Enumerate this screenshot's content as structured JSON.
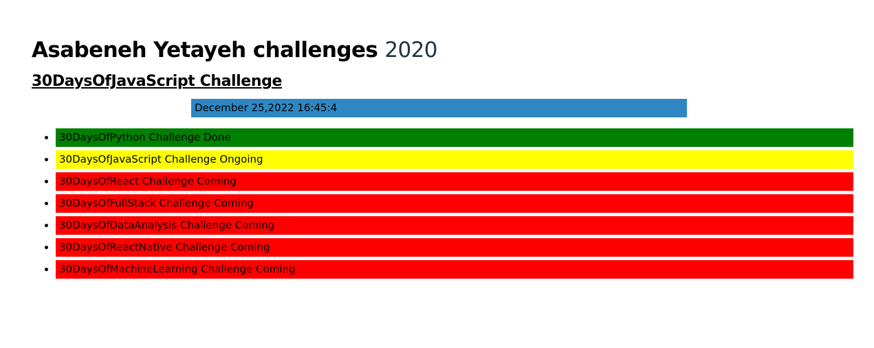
{
  "header": {
    "title": "Asabeneh Yetayeh challenges",
    "year": "2020",
    "year_color": "#1f3342"
  },
  "subtitle": "30DaysOfJavaScript Challenge",
  "date_box": {
    "text": "December 25,2022 16:45:4",
    "color": "#2e87c2"
  },
  "challenges": [
    {
      "label": "30DaysOfPython Challenge Done",
      "status": "Done",
      "color": "#008000"
    },
    {
      "label": "30DaysOfJavaScript Challenge Ongoing",
      "status": "Ongoing",
      "color": "#ffff00"
    },
    {
      "label": "30DaysOfReact Challenge Coming",
      "status": "Coming",
      "color": "#ff0000"
    },
    {
      "label": "30DaysOfFullStack Challenge Coming",
      "status": "Coming",
      "color": "#ff0000"
    },
    {
      "label": "30DaysOfDataAnalysis Challenge Coming",
      "status": "Coming",
      "color": "#ff0000"
    },
    {
      "label": "30DaysOfReactNative Challenge Coming",
      "status": "Coming",
      "color": "#ff0000"
    },
    {
      "label": "30DaysOfMachineLearning Challenge Coming",
      "status": "Coming",
      "color": "#ff0000"
    }
  ]
}
